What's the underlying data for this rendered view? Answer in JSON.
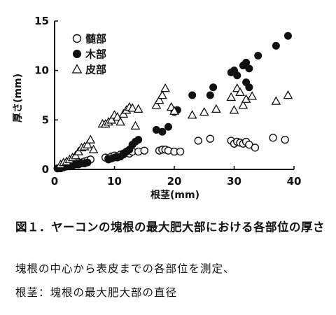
{
  "chart_data": {
    "type": "scatter",
    "xlabel": "根茎(mm)",
    "ylabel": "厚さ(mm)",
    "xlim": [
      0,
      40
    ],
    "ylim": [
      0,
      15
    ],
    "xticks": [
      "0",
      "10",
      "20",
      "30",
      "40"
    ],
    "yticks": [
      "0",
      "5",
      "10",
      "15"
    ],
    "grid": false,
    "legend_position": "top-left",
    "series": [
      {
        "name": "髄部",
        "marker": "open-circle",
        "points": [
          [
            0.5,
            0.1
          ],
          [
            1.0,
            0.2
          ],
          [
            1.5,
            0.3
          ],
          [
            2.0,
            0.3
          ],
          [
            2.5,
            0.4
          ],
          [
            3.0,
            0.5
          ],
          [
            3.5,
            0.6
          ],
          [
            4.0,
            0.6
          ],
          [
            4.5,
            0.7
          ],
          [
            5.0,
            0.8
          ],
          [
            5.5,
            0.9
          ],
          [
            6.0,
            1.0
          ],
          [
            8.5,
            1.2
          ],
          [
            9.0,
            1.1
          ],
          [
            9.5,
            1.3
          ],
          [
            10.0,
            1.4
          ],
          [
            10.5,
            1.3
          ],
          [
            11.0,
            1.5
          ],
          [
            11.5,
            1.6
          ],
          [
            12.0,
            1.7
          ],
          [
            12.5,
            1.6
          ],
          [
            13.0,
            1.8
          ],
          [
            14.0,
            1.8
          ],
          [
            15.0,
            1.9
          ],
          [
            17.5,
            1.9
          ],
          [
            18.0,
            2.0
          ],
          [
            18.5,
            2.0
          ],
          [
            19.0,
            1.9
          ],
          [
            20.0,
            1.8
          ],
          [
            21.0,
            1.8
          ],
          [
            24.0,
            2.9
          ],
          [
            26.0,
            3.1
          ],
          [
            29.5,
            2.9
          ],
          [
            30.0,
            2.6
          ],
          [
            30.5,
            2.8
          ],
          [
            31.0,
            2.7
          ],
          [
            31.5,
            2.6
          ],
          [
            32.0,
            2.8
          ],
          [
            32.5,
            2.5
          ],
          [
            33.5,
            2.2
          ],
          [
            36.5,
            3.2
          ],
          [
            38.5,
            3.0
          ]
        ]
      },
      {
        "name": "木部",
        "marker": "filled-circle",
        "points": [
          [
            0.5,
            0.1
          ],
          [
            1.0,
            0.1
          ],
          [
            1.5,
            0.2
          ],
          [
            2.0,
            0.3
          ],
          [
            2.5,
            0.3
          ],
          [
            3.0,
            0.4
          ],
          [
            3.5,
            0.5
          ],
          [
            4.0,
            0.5
          ],
          [
            4.5,
            0.6
          ],
          [
            5.0,
            0.6
          ],
          [
            5.5,
            0.7
          ],
          [
            9.0,
            1.0
          ],
          [
            9.5,
            1.1
          ],
          [
            10.0,
            1.2
          ],
          [
            10.5,
            1.2
          ],
          [
            11.0,
            1.3
          ],
          [
            11.5,
            1.5
          ],
          [
            12.0,
            1.8
          ],
          [
            12.5,
            2.0
          ],
          [
            13.0,
            2.5
          ],
          [
            13.5,
            2.8
          ],
          [
            14.0,
            3.0
          ],
          [
            17.0,
            4.0
          ],
          [
            18.0,
            3.8
          ],
          [
            19.0,
            4.3
          ],
          [
            20.0,
            5.8
          ],
          [
            20.5,
            6.0
          ],
          [
            23.0,
            7.5
          ],
          [
            26.0,
            7.5
          ],
          [
            26.5,
            8.3
          ],
          [
            29.5,
            9.8
          ],
          [
            30.0,
            10.0
          ],
          [
            30.5,
            9.5
          ],
          [
            31.5,
            10.5
          ],
          [
            32.0,
            10.8
          ],
          [
            32.5,
            10.2
          ],
          [
            32.0,
            8.8
          ],
          [
            32.5,
            8.3
          ],
          [
            34.0,
            11.5
          ],
          [
            37.0,
            12.5
          ],
          [
            39.0,
            13.5
          ]
        ]
      },
      {
        "name": "皮部",
        "marker": "open-triangle",
        "points": [
          [
            1.0,
            0.5
          ],
          [
            1.5,
            0.7
          ],
          [
            2.0,
            0.8
          ],
          [
            2.5,
            1.0
          ],
          [
            3.0,
            1.2
          ],
          [
            3.5,
            1.4
          ],
          [
            4.0,
            1.8
          ],
          [
            4.5,
            2.2
          ],
          [
            5.0,
            2.3
          ],
          [
            5.5,
            2.5
          ],
          [
            6.0,
            3.0
          ],
          [
            6.5,
            2.0
          ],
          [
            8.0,
            4.6
          ],
          [
            8.5,
            4.6
          ],
          [
            9.0,
            4.8
          ],
          [
            9.5,
            5.0
          ],
          [
            10.0,
            5.5
          ],
          [
            10.5,
            5.3
          ],
          [
            11.0,
            4.8
          ],
          [
            11.5,
            5.6
          ],
          [
            12.0,
            6.0
          ],
          [
            12.5,
            6.3
          ],
          [
            13.0,
            6.2
          ],
          [
            13.5,
            4.4
          ],
          [
            14.0,
            6.1
          ],
          [
            17.0,
            6.5
          ],
          [
            17.5,
            7.0
          ],
          [
            18.0,
            7.5
          ],
          [
            18.5,
            8.2
          ],
          [
            19.5,
            6.3
          ],
          [
            20.0,
            5.9
          ],
          [
            23.0,
            5.5
          ],
          [
            25.0,
            5.8
          ],
          [
            27.0,
            6.1
          ],
          [
            29.5,
            7.3
          ],
          [
            30.0,
            6.0
          ],
          [
            30.5,
            8.2
          ],
          [
            31.0,
            7.8
          ],
          [
            31.5,
            6.5
          ],
          [
            32.0,
            7.1
          ],
          [
            33.0,
            7.4
          ],
          [
            37.0,
            6.9
          ],
          [
            39.0,
            7.5
          ]
        ]
      }
    ]
  },
  "caption": {
    "title": "図１．ヤーコンの塊根の最大肥大部における各部位の厚さ",
    "line1": "塊根の中心から表皮までの各部位を測定、",
    "line2": "根茎：塊根の最大肥大部の直径"
  }
}
